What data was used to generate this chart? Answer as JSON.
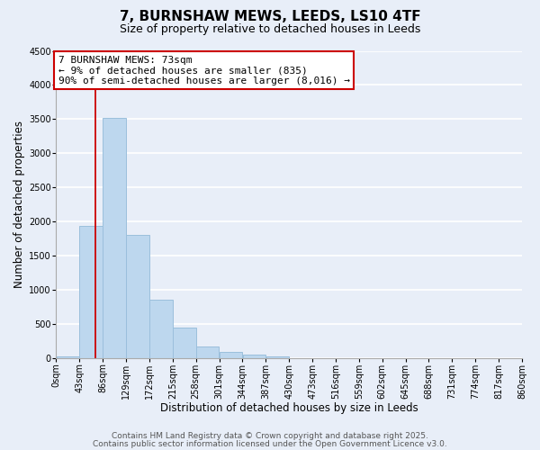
{
  "title": "7, BURNSHAW MEWS, LEEDS, LS10 4TF",
  "subtitle": "Size of property relative to detached houses in Leeds",
  "xlabel": "Distribution of detached houses by size in Leeds",
  "ylabel": "Number of detached properties",
  "bar_color": "#bdd7ee",
  "bar_edge_color": "#9bbfdc",
  "background_color": "#e8eef8",
  "grid_color": "#ffffff",
  "bin_edges": [
    0,
    43,
    86,
    129,
    172,
    215,
    258,
    301,
    344,
    387,
    430,
    473,
    516,
    559,
    602,
    645,
    688,
    731,
    774,
    817,
    860
  ],
  "bin_labels": [
    "0sqm",
    "43sqm",
    "86sqm",
    "129sqm",
    "172sqm",
    "215sqm",
    "258sqm",
    "301sqm",
    "344sqm",
    "387sqm",
    "430sqm",
    "473sqm",
    "516sqm",
    "559sqm",
    "602sqm",
    "645sqm",
    "688sqm",
    "731sqm",
    "774sqm",
    "817sqm",
    "860sqm"
  ],
  "bar_heights": [
    30,
    1940,
    3520,
    1800,
    860,
    450,
    175,
    90,
    45,
    20,
    0,
    0,
    0,
    0,
    0,
    0,
    0,
    0,
    0,
    0
  ],
  "ylim": [
    0,
    4500
  ],
  "yticks": [
    0,
    500,
    1000,
    1500,
    2000,
    2500,
    3000,
    3500,
    4000,
    4500
  ],
  "vline_x": 73,
  "vline_color": "#cc0000",
  "annotation_title": "7 BURNSHAW MEWS: 73sqm",
  "annotation_line1": "← 9% of detached houses are smaller (835)",
  "annotation_line2": "90% of semi-detached houses are larger (8,016) →",
  "annotation_box_color": "#ffffff",
  "annotation_border_color": "#cc0000",
  "footer1": "Contains HM Land Registry data © Crown copyright and database right 2025.",
  "footer2": "Contains public sector information licensed under the Open Government Licence v3.0.",
  "title_fontsize": 11,
  "subtitle_fontsize": 9,
  "axis_label_fontsize": 8.5,
  "tick_fontsize": 7,
  "annotation_fontsize": 8,
  "footer_fontsize": 6.5
}
